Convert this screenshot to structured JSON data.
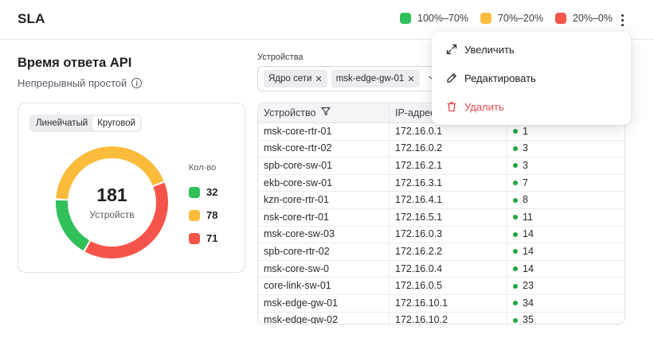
{
  "header": {
    "title": "SLA",
    "legend": [
      {
        "label": "100%–70%",
        "color": "#30c05a"
      },
      {
        "label": "70%–20%",
        "color": "#fbbc3c"
      },
      {
        "label": "20%–0%",
        "color": "#f5544a"
      }
    ]
  },
  "widget": {
    "title": "Время ответа API",
    "subtitle": "Непрерывный простой",
    "toggle": {
      "linear": "Линейчатый",
      "circular": "Круговой",
      "active": "circular"
    },
    "donut": {
      "total": "181",
      "total_label": "Устройств",
      "legend_header": "Кол-во",
      "segments": [
        {
          "value": 32,
          "label": "32",
          "color": "#30c05a"
        },
        {
          "value": 78,
          "label": "78",
          "color": "#fbbc3c"
        },
        {
          "value": 71,
          "label": "71",
          "color": "#f5544a"
        }
      ]
    }
  },
  "filter": {
    "label": "Устройства",
    "chips": [
      "Ядро сети",
      "msk-edge-gw-01"
    ]
  },
  "table": {
    "columns": [
      "Устройство",
      "IP-адрес",
      ""
    ],
    "rows": [
      [
        "msk-core-rtr-01",
        "172.16.0.1",
        "1"
      ],
      [
        "msk-core-rtr-02",
        "172.16.0.2",
        "3"
      ],
      [
        "spb-core-sw-01",
        "172.16.2.1",
        "3"
      ],
      [
        "ekb-core-sw-01",
        "172.16.3.1",
        "7"
      ],
      [
        "kzn-core-rtr-01",
        "172.16.4.1",
        "8"
      ],
      [
        "nsk-core-rtr-01",
        "172.16.5.1",
        "11"
      ],
      [
        "msk-core-sw-03",
        "172.16.0.3",
        "14"
      ],
      [
        "spb-core-rtr-02",
        "172.16.2.2",
        "14"
      ],
      [
        "msk-core-sw-0",
        "172.16.0.4",
        "14"
      ],
      [
        "core-link-sw-01",
        "172.16.0.5",
        "23"
      ],
      [
        "msk-edge-gw-01",
        "172.16.10.1",
        "34"
      ],
      [
        "msk-edge-gw-02",
        "172.16.10.2",
        "35"
      ]
    ]
  },
  "menu": {
    "items": [
      {
        "label": "Увеличить",
        "icon": "expand-icon"
      },
      {
        "label": "Редактировать",
        "icon": "pencil-icon"
      },
      {
        "label": "Удалить",
        "icon": "trash-icon",
        "danger": true
      }
    ]
  }
}
